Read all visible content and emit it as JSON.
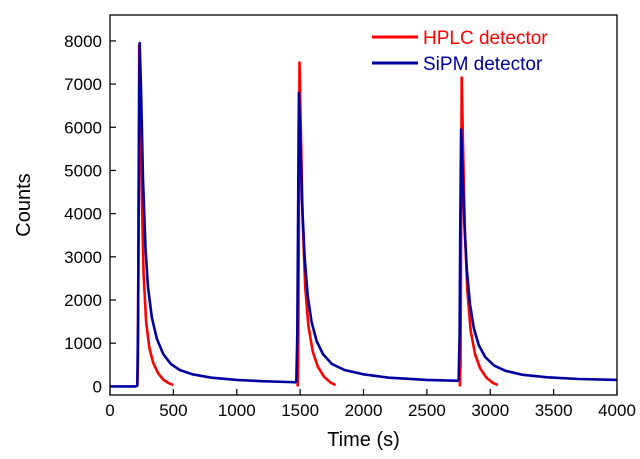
{
  "chart_data": {
    "type": "line",
    "xlabel": "Time (s)",
    "ylabel": "Counts",
    "xlim": [
      0,
      4000
    ],
    "ylim": [
      -200,
      8600
    ],
    "xticks": [
      0,
      500,
      1000,
      1500,
      2000,
      2500,
      3000,
      3500,
      4000
    ],
    "yticks": [
      0,
      1000,
      2000,
      3000,
      4000,
      5000,
      6000,
      7000,
      8000
    ],
    "grid": false,
    "legend_position": "top-right",
    "series": [
      {
        "name": "HPLC detector",
        "color": "#ff0000",
        "segments": [
          [
            [
              215,
              0
            ],
            [
              220,
              600
            ],
            [
              225,
              3500
            ],
            [
              230,
              7900
            ],
            [
              240,
              6500
            ],
            [
              250,
              4500
            ],
            [
              265,
              2600
            ],
            [
              285,
              1500
            ],
            [
              310,
              900
            ],
            [
              340,
              550
            ],
            [
              380,
              300
            ],
            [
              420,
              160
            ],
            [
              460,
              80
            ],
            [
              500,
              30
            ]
          ],
          [
            [
              1480,
              0
            ],
            [
              1485,
              500
            ],
            [
              1490,
              4000
            ],
            [
              1495,
              7500
            ],
            [
              1505,
              6000
            ],
            [
              1520,
              3800
            ],
            [
              1540,
              2300
            ],
            [
              1565,
              1400
            ],
            [
              1600,
              800
            ],
            [
              1640,
              450
            ],
            [
              1690,
              220
            ],
            [
              1740,
              90
            ],
            [
              1780,
              30
            ]
          ],
          [
            [
              2760,
              0
            ],
            [
              2765,
              500
            ],
            [
              2770,
              3500
            ],
            [
              2775,
              7150
            ],
            [
              2785,
              5600
            ],
            [
              2800,
              3600
            ],
            [
              2820,
              2200
            ],
            [
              2845,
              1300
            ],
            [
              2880,
              750
            ],
            [
              2920,
              420
            ],
            [
              2970,
              200
            ],
            [
              3020,
              80
            ],
            [
              3060,
              30
            ]
          ]
        ]
      },
      {
        "name": "SiPM detector",
        "color": "#0000a0",
        "segments": [
          [
            [
              0,
              0
            ],
            [
              200,
              0
            ],
            [
              215,
              10
            ],
            [
              222,
              1500
            ],
            [
              228,
              5500
            ],
            [
              234,
              7950
            ],
            [
              245,
              6800
            ],
            [
              260,
              4800
            ],
            [
              280,
              3200
            ],
            [
              300,
              2300
            ],
            [
              330,
              1600
            ],
            [
              370,
              1100
            ],
            [
              420,
              750
            ],
            [
              480,
              520
            ],
            [
              550,
              380
            ],
            [
              650,
              280
            ],
            [
              800,
              200
            ],
            [
              1000,
              150
            ],
            [
              1200,
              120
            ],
            [
              1400,
              100
            ],
            [
              1470,
              95
            ]
          ],
          [
            [
              1470,
              95
            ],
            [
              1478,
              1200
            ],
            [
              1484,
              4000
            ],
            [
              1490,
              6800
            ],
            [
              1500,
              5900
            ],
            [
              1515,
              4300
            ],
            [
              1535,
              3000
            ],
            [
              1560,
              2100
            ],
            [
              1590,
              1500
            ],
            [
              1630,
              1050
            ],
            [
              1680,
              750
            ],
            [
              1750,
              520
            ],
            [
              1850,
              380
            ],
            [
              2000,
              280
            ],
            [
              2200,
              200
            ],
            [
              2500,
              150
            ],
            [
              2750,
              130
            ]
          ],
          [
            [
              2750,
              130
            ],
            [
              2758,
              1200
            ],
            [
              2764,
              3800
            ],
            [
              2770,
              5950
            ],
            [
              2780,
              5100
            ],
            [
              2795,
              3800
            ],
            [
              2815,
              2700
            ],
            [
              2840,
              1900
            ],
            [
              2870,
              1350
            ],
            [
              2910,
              950
            ],
            [
              2960,
              680
            ],
            [
              3030,
              480
            ],
            [
              3120,
              360
            ],
            [
              3250,
              270
            ],
            [
              3450,
              210
            ],
            [
              3700,
              170
            ],
            [
              4000,
              150
            ]
          ]
        ]
      }
    ]
  }
}
